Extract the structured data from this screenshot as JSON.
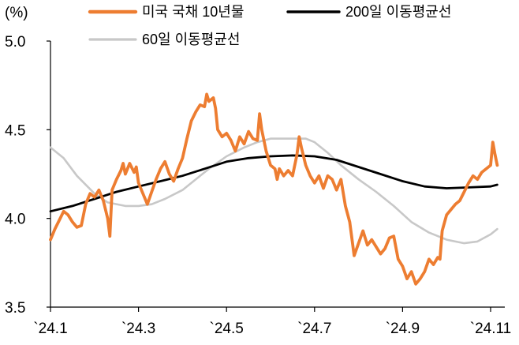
{
  "chart_data": {
    "type": "line",
    "unit_label": "(%)",
    "ylim": [
      3.5,
      5.0
    ],
    "y_ticks": [
      "5.0",
      "4.5",
      "4.0",
      "3.5"
    ],
    "x_ticks": [
      "`24.1",
      "`24.3",
      "`24.5",
      "`24.7",
      "`24.9",
      "`24.11"
    ],
    "grid": false,
    "legend": "top",
    "series": [
      {
        "name": "미국 국채 10년물",
        "color": "#ed7d31",
        "points": [
          [
            1.0,
            3.88
          ],
          [
            1.1,
            3.94
          ],
          [
            1.2,
            3.99
          ],
          [
            1.3,
            4.04
          ],
          [
            1.4,
            4.02
          ],
          [
            1.5,
            3.98
          ],
          [
            1.6,
            3.95
          ],
          [
            1.7,
            3.96
          ],
          [
            1.8,
            4.08
          ],
          [
            1.9,
            4.14
          ],
          [
            2.0,
            4.12
          ],
          [
            2.1,
            4.16
          ],
          [
            2.2,
            4.1
          ],
          [
            2.3,
            4.0
          ],
          [
            2.35,
            3.9
          ],
          [
            2.4,
            4.16
          ],
          [
            2.5,
            4.22
          ],
          [
            2.6,
            4.27
          ],
          [
            2.65,
            4.31
          ],
          [
            2.7,
            4.25
          ],
          [
            2.8,
            4.31
          ],
          [
            2.9,
            4.26
          ],
          [
            2.95,
            4.29
          ],
          [
            3.0,
            4.2
          ],
          [
            3.1,
            4.14
          ],
          [
            3.2,
            4.08
          ],
          [
            3.3,
            4.15
          ],
          [
            3.4,
            4.22
          ],
          [
            3.5,
            4.28
          ],
          [
            3.6,
            4.32
          ],
          [
            3.7,
            4.25
          ],
          [
            3.8,
            4.21
          ],
          [
            3.9,
            4.28
          ],
          [
            4.0,
            4.34
          ],
          [
            4.1,
            4.45
          ],
          [
            4.2,
            4.55
          ],
          [
            4.3,
            4.6
          ],
          [
            4.4,
            4.64
          ],
          [
            4.5,
            4.63
          ],
          [
            4.55,
            4.7
          ],
          [
            4.6,
            4.66
          ],
          [
            4.7,
            4.68
          ],
          [
            4.75,
            4.62
          ],
          [
            4.8,
            4.5
          ],
          [
            4.9,
            4.46
          ],
          [
            5.0,
            4.48
          ],
          [
            5.1,
            4.44
          ],
          [
            5.2,
            4.38
          ],
          [
            5.3,
            4.46
          ],
          [
            5.4,
            4.42
          ],
          [
            5.5,
            4.49
          ],
          [
            5.6,
            4.45
          ],
          [
            5.7,
            4.44
          ],
          [
            5.75,
            4.59
          ],
          [
            5.8,
            4.5
          ],
          [
            5.9,
            4.38
          ],
          [
            6.0,
            4.3
          ],
          [
            6.1,
            4.28
          ],
          [
            6.15,
            4.22
          ],
          [
            6.2,
            4.28
          ],
          [
            6.3,
            4.24
          ],
          [
            6.4,
            4.27
          ],
          [
            6.5,
            4.24
          ],
          [
            6.6,
            4.36
          ],
          [
            6.65,
            4.46
          ],
          [
            6.7,
            4.4
          ],
          [
            6.8,
            4.3
          ],
          [
            6.9,
            4.24
          ],
          [
            7.0,
            4.2
          ],
          [
            7.1,
            4.24
          ],
          [
            7.2,
            4.17
          ],
          [
            7.3,
            4.24
          ],
          [
            7.4,
            4.22
          ],
          [
            7.5,
            4.16
          ],
          [
            7.6,
            4.22
          ],
          [
            7.7,
            4.07
          ],
          [
            7.8,
            3.98
          ],
          [
            7.9,
            3.79
          ],
          [
            8.0,
            3.86
          ],
          [
            8.1,
            3.93
          ],
          [
            8.2,
            3.85
          ],
          [
            8.3,
            3.88
          ],
          [
            8.4,
            3.84
          ],
          [
            8.5,
            3.8
          ],
          [
            8.6,
            3.83
          ],
          [
            8.7,
            3.89
          ],
          [
            8.8,
            3.9
          ],
          [
            8.9,
            3.77
          ],
          [
            9.0,
            3.73
          ],
          [
            9.1,
            3.66
          ],
          [
            9.2,
            3.7
          ],
          [
            9.3,
            3.63
          ],
          [
            9.4,
            3.66
          ],
          [
            9.5,
            3.7
          ],
          [
            9.6,
            3.77
          ],
          [
            9.7,
            3.74
          ],
          [
            9.8,
            3.78
          ],
          [
            9.85,
            3.77
          ],
          [
            9.9,
            3.93
          ],
          [
            10.0,
            4.02
          ],
          [
            10.1,
            4.05
          ],
          [
            10.2,
            4.08
          ],
          [
            10.3,
            4.1
          ],
          [
            10.4,
            4.15
          ],
          [
            10.5,
            4.2
          ],
          [
            10.6,
            4.24
          ],
          [
            10.7,
            4.22
          ],
          [
            10.8,
            4.26
          ],
          [
            10.9,
            4.28
          ],
          [
            11.0,
            4.3
          ],
          [
            11.05,
            4.43
          ],
          [
            11.1,
            4.36
          ],
          [
            11.15,
            4.3
          ]
        ]
      },
      {
        "name": "200일 이동평균선",
        "color": "#000000",
        "points": [
          [
            1.0,
            4.04
          ],
          [
            1.5,
            4.07
          ],
          [
            2.0,
            4.11
          ],
          [
            2.5,
            4.15
          ],
          [
            3.0,
            4.18
          ],
          [
            3.5,
            4.21
          ],
          [
            4.0,
            4.24
          ],
          [
            4.5,
            4.28
          ],
          [
            5.0,
            4.32
          ],
          [
            5.5,
            4.34
          ],
          [
            6.0,
            4.35
          ],
          [
            6.5,
            4.355
          ],
          [
            7.0,
            4.35
          ],
          [
            7.5,
            4.33
          ],
          [
            8.0,
            4.29
          ],
          [
            8.5,
            4.25
          ],
          [
            9.0,
            4.21
          ],
          [
            9.5,
            4.18
          ],
          [
            10.0,
            4.17
          ],
          [
            10.5,
            4.175
          ],
          [
            11.0,
            4.18
          ],
          [
            11.15,
            4.19
          ]
        ]
      },
      {
        "name": "60일 이동평균선",
        "color": "#c8c8c8",
        "points": [
          [
            1.0,
            4.4
          ],
          [
            1.3,
            4.34
          ],
          [
            1.6,
            4.24
          ],
          [
            2.0,
            4.14
          ],
          [
            2.3,
            4.09
          ],
          [
            2.7,
            4.07
          ],
          [
            3.0,
            4.07
          ],
          [
            3.3,
            4.08
          ],
          [
            3.6,
            4.11
          ],
          [
            4.0,
            4.16
          ],
          [
            4.3,
            4.22
          ],
          [
            4.6,
            4.28
          ],
          [
            5.0,
            4.35
          ],
          [
            5.4,
            4.4
          ],
          [
            5.7,
            4.43
          ],
          [
            6.0,
            4.45
          ],
          [
            6.4,
            4.45
          ],
          [
            6.8,
            4.45
          ],
          [
            7.0,
            4.43
          ],
          [
            7.3,
            4.37
          ],
          [
            7.6,
            4.3
          ],
          [
            8.0,
            4.22
          ],
          [
            8.4,
            4.15
          ],
          [
            8.8,
            4.07
          ],
          [
            9.2,
            3.98
          ],
          [
            9.6,
            3.92
          ],
          [
            10.0,
            3.88
          ],
          [
            10.4,
            3.86
          ],
          [
            10.7,
            3.87
          ],
          [
            11.0,
            3.91
          ],
          [
            11.15,
            3.94
          ]
        ]
      }
    ]
  }
}
